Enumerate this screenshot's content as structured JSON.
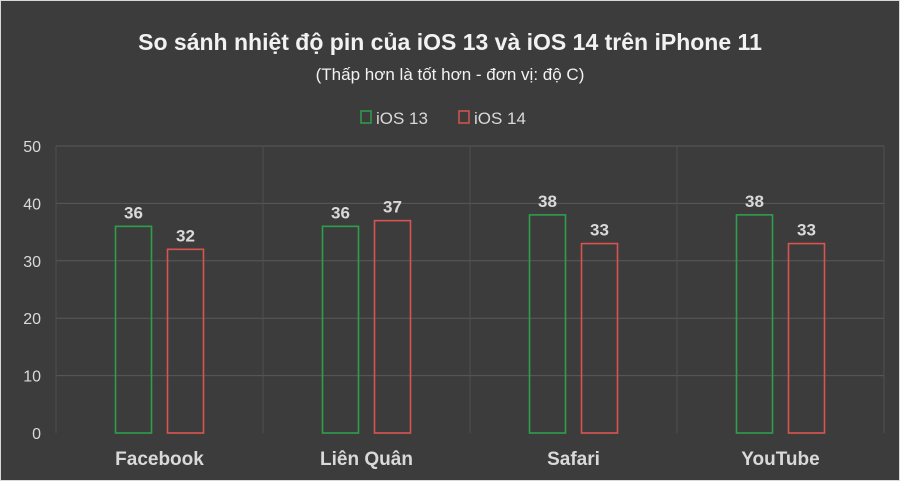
{
  "colors": {
    "background": "#3c3c3c",
    "ios13": "#2e9e4b",
    "ios14": "#d9544f"
  },
  "chart_data": {
    "type": "bar",
    "title": "So sánh nhiệt độ pin của iOS 13 và iOS 14 trên iPhone 11",
    "subtitle": "(Thấp  hơn là tốt hơn - đơn vị: độ C)",
    "categories": [
      "Facebook",
      "Liên Quân",
      "Safari",
      "YouTube"
    ],
    "series": [
      {
        "name": "iOS 13",
        "values": [
          36,
          36,
          38,
          38
        ]
      },
      {
        "name": "iOS 14",
        "values": [
          32,
          37,
          33,
          33
        ]
      }
    ],
    "ylim": [
      0,
      50
    ],
    "yticks": [
      "0",
      "10",
      "20",
      "30",
      "40",
      "50"
    ],
    "grid": true,
    "legend_position": "top-center"
  }
}
